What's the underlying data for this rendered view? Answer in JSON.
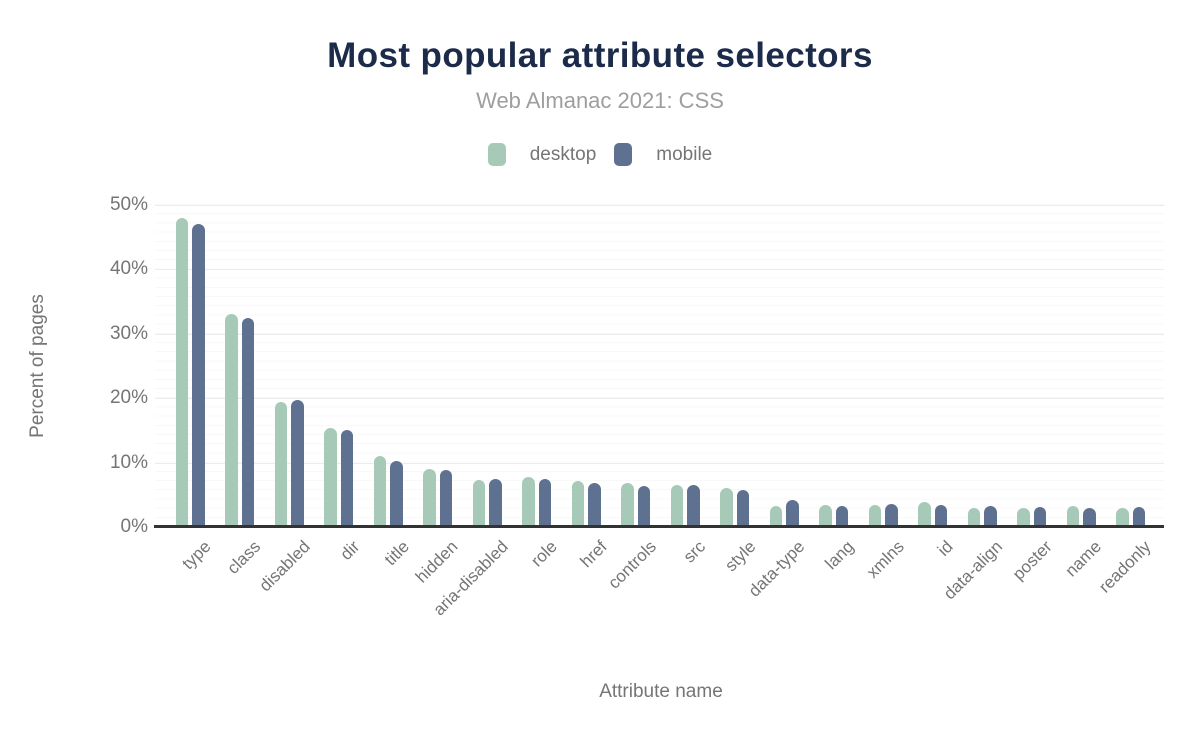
{
  "header": {
    "title": "Most popular attribute selectors",
    "subtitle": "Web Almanac 2021: CSS"
  },
  "colors": {
    "desktop": "#a7cab8",
    "mobile": "#5e7190",
    "title_text": "#1c2b4a",
    "subtitle_text": "#9e9e9e",
    "axis_text": "#757575",
    "axis_line": "#333333",
    "grid_major": "#ececec",
    "grid_minor": "#f8f8f8",
    "background": "#ffffff"
  },
  "chart_data": {
    "type": "bar",
    "title": "Most popular attribute selectors",
    "subtitle": "Web Almanac 2021: CSS",
    "xlabel": "Attribute name",
    "ylabel": "Percent of pages",
    "ylim": [
      0,
      50
    ],
    "yticks": [
      {
        "value": 0,
        "label": "0%"
      },
      {
        "value": 10,
        "label": "10%"
      },
      {
        "value": 20,
        "label": "20%"
      },
      {
        "value": 30,
        "label": "30%"
      },
      {
        "value": 40,
        "label": "40%"
      },
      {
        "value": 50,
        "label": "50%"
      }
    ],
    "grid": true,
    "legend_position": "top",
    "categories": [
      "type",
      "class",
      "disabled",
      "dir",
      "title",
      "hidden",
      "aria-disabled",
      "role",
      "href",
      "controls",
      "src",
      "style",
      "data-type",
      "lang",
      "xmlns",
      "id",
      "data-align",
      "poster",
      "name",
      "readonly"
    ],
    "series": [
      {
        "name": "desktop",
        "color": "#a7cab8",
        "values": [
          48.0,
          33.0,
          19.4,
          15.3,
          11.0,
          9.0,
          7.3,
          7.8,
          7.2,
          6.8,
          6.6,
          6.0,
          3.3,
          3.4,
          3.4,
          3.9,
          2.9,
          2.9,
          3.3,
          2.9
        ]
      },
      {
        "name": "mobile",
        "color": "#5e7190",
        "values": [
          47.0,
          32.4,
          19.8,
          15.0,
          10.3,
          8.8,
          7.5,
          7.5,
          6.9,
          6.4,
          6.5,
          5.7,
          4.2,
          3.3,
          3.5,
          3.4,
          3.2,
          3.1,
          2.9,
          3.1
        ]
      }
    ]
  }
}
